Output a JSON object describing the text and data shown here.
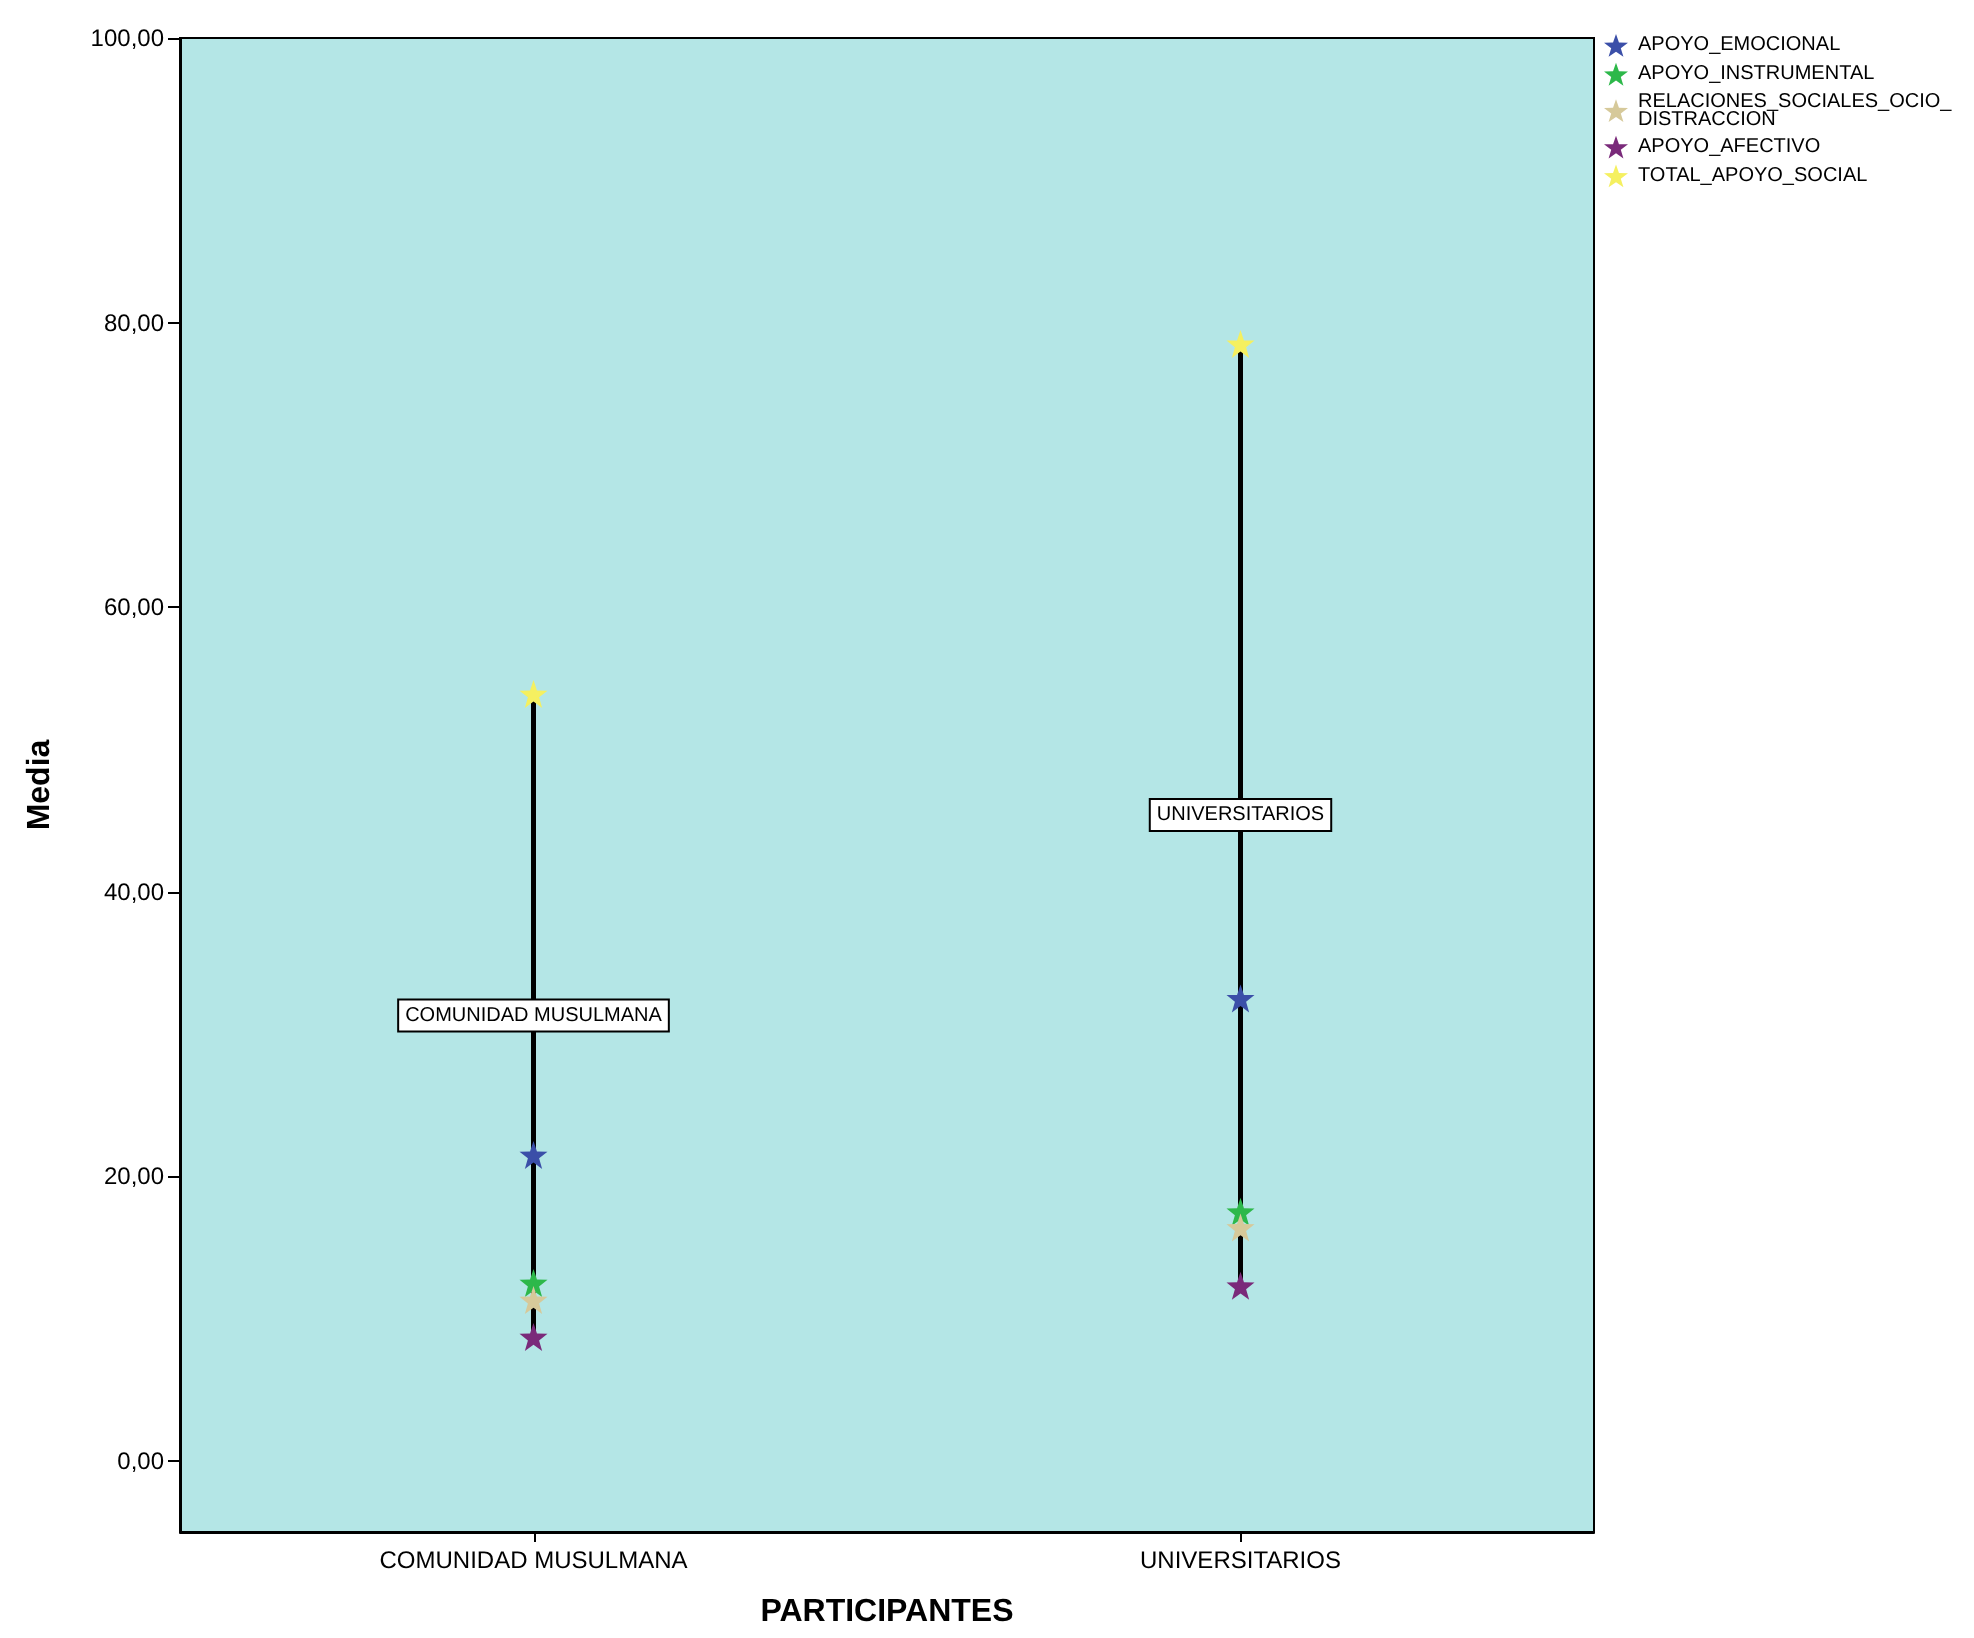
{
  "chart_data": {
    "type": "scatter",
    "xlabel": "PARTICIPANTES",
    "ylabel": "Media",
    "categories": [
      "COMUNIDAD MUSULMANA",
      "UNIVERSITARIOS"
    ],
    "series": [
      {
        "name": "APOYO_EMOCIONAL",
        "color": "#3b4fa8",
        "values": [
          21.5,
          32.5
        ]
      },
      {
        "name": "APOYO_INSTRUMENTAL",
        "color": "#2db84a",
        "values": [
          12.5,
          17.5
        ]
      },
      {
        "name": "RELACIONES_SOCIALES_OCIO_DISTRACCION",
        "color": "#d6c99a",
        "values": [
          11.3,
          16.4
        ]
      },
      {
        "name": "APOYO_AFECTIVO",
        "color": "#7a2a7a",
        "values": [
          8.7,
          12.3
        ]
      },
      {
        "name": "TOTAL_APOYO_SOCIAL",
        "color": "#f5f060",
        "values": [
          53.9,
          78.5
        ]
      }
    ],
    "annotations": [
      "COMUNIDAD MUSULMANA",
      "UNIVERSITARIOS"
    ],
    "ylim": [
      -5,
      100
    ],
    "yticks": [
      {
        "value": 0,
        "label": "0,00"
      },
      {
        "value": 20,
        "label": "20,00"
      },
      {
        "value": 40,
        "label": "40,00"
      },
      {
        "value": 60,
        "label": "60,00"
      },
      {
        "value": 80,
        "label": "80,00"
      },
      {
        "value": 100,
        "label": "100,00"
      }
    ],
    "grid": false,
    "legend": "top right",
    "marker": "star"
  }
}
